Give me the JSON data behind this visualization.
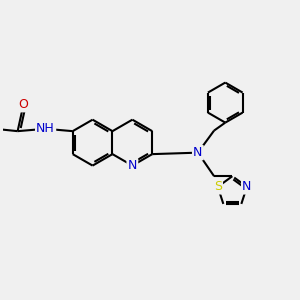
{
  "background_color": "#f0f0f0",
  "bond_color": "#000000",
  "bond_lw": 1.5,
  "colors": {
    "N": "#0000cc",
    "O": "#cc0000",
    "S": "#cccc00",
    "C": "#000000"
  },
  "fig_w": 3.0,
  "fig_h": 3.0,
  "dpi": 100
}
